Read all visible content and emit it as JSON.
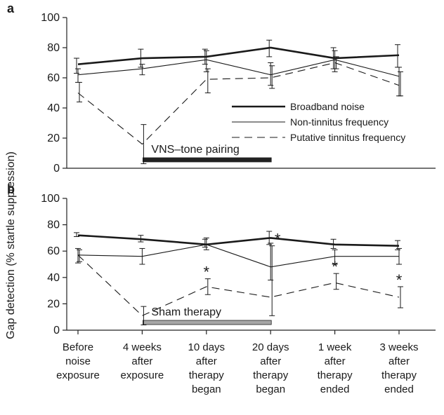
{
  "figure": {
    "ylabel": "Gap detection (% startle suppression)",
    "categories": [
      [
        "Before",
        "noise",
        "exposure"
      ],
      [
        "4 weeks",
        "after",
        "exposure"
      ],
      [
        "10 days",
        "after",
        "therapy",
        "began"
      ],
      [
        "20 days",
        "after",
        "therapy",
        "began"
      ],
      [
        "1 week",
        "after",
        "therapy",
        "ended"
      ],
      [
        "3 weeks",
        "after",
        "therapy",
        "ended"
      ]
    ]
  },
  "chart_data": [
    {
      "type": "line",
      "panel_label": "a",
      "ylim": [
        0,
        100
      ],
      "yticks": [
        0,
        20,
        40,
        60,
        80,
        100
      ],
      "x": [
        "Before noise exposure",
        "4 weeks after exposure",
        "10 days after therapy began",
        "20 days after therapy began",
        "1 week after therapy ended",
        "3 weeks after therapy ended"
      ],
      "series": [
        {
          "name": "Broadband noise",
          "style": "thick",
          "values": [
            69,
            73,
            74,
            80,
            73,
            75
          ],
          "err_low": [
            63,
            67,
            69,
            74,
            66,
            67
          ],
          "err_high": [
            73,
            79,
            79,
            85,
            80,
            82
          ]
        },
        {
          "name": "Non-tinnitus frequency",
          "style": "thin",
          "values": [
            62,
            66,
            72,
            62,
            72,
            61
          ],
          "err_low": [
            57,
            62,
            64,
            55,
            64,
            48
          ],
          "err_high": [
            66,
            69,
            78,
            70,
            78,
            67
          ]
        },
        {
          "name": "Putative tinnitus frequency",
          "style": "dashed",
          "values": [
            50,
            16,
            59,
            60,
            70,
            55
          ],
          "err_low": [
            44,
            3,
            50,
            53,
            66,
            48
          ],
          "err_high": [
            57,
            29,
            66,
            68,
            74,
            64
          ]
        }
      ],
      "legend_position": "right",
      "therapy_bar": {
        "label": "VNS–tone pairing",
        "start_index": 1,
        "end_index": 3,
        "color": "#222222"
      }
    },
    {
      "type": "line",
      "panel_label": "b",
      "ylim": [
        0,
        100
      ],
      "yticks": [
        0,
        20,
        40,
        60,
        80,
        100
      ],
      "x": [
        "Before noise exposure",
        "4 weeks after exposure",
        "10 days after therapy began",
        "20 days after therapy began",
        "1 week after therapy ended",
        "3 weeks after therapy ended"
      ],
      "series": [
        {
          "name": "Broadband noise",
          "style": "thick",
          "values": [
            72,
            69,
            65,
            70,
            65,
            64
          ],
          "err_low": [
            71,
            67,
            63,
            65,
            62,
            61
          ],
          "err_high": [
            74,
            72,
            69,
            75,
            69,
            68
          ]
        },
        {
          "name": "Non-tinnitus frequency",
          "style": "thin",
          "values": [
            57,
            56,
            65,
            48,
            56,
            56
          ],
          "err_low": [
            51,
            50,
            61,
            38,
            50,
            50
          ],
          "err_high": [
            62,
            62,
            70,
            66,
            61,
            62
          ]
        },
        {
          "name": "Putative tinnitus frequency",
          "style": "dashed",
          "values": [
            57,
            11,
            33,
            25,
            36,
            25
          ],
          "err_low": [
            52,
            4,
            27,
            11,
            31,
            17
          ],
          "err_high": [
            61,
            18,
            39,
            64,
            43,
            33
          ]
        }
      ],
      "significance": [
        {
          "index": 2,
          "marker": "*"
        },
        {
          "index": 3,
          "marker": "*"
        },
        {
          "index": 4,
          "marker": "*"
        },
        {
          "index": 5,
          "marker": "*"
        }
      ],
      "therapy_bar": {
        "label": "Sham therapy",
        "start_index": 1,
        "end_index": 3,
        "color": "#a6a6a6"
      }
    }
  ]
}
